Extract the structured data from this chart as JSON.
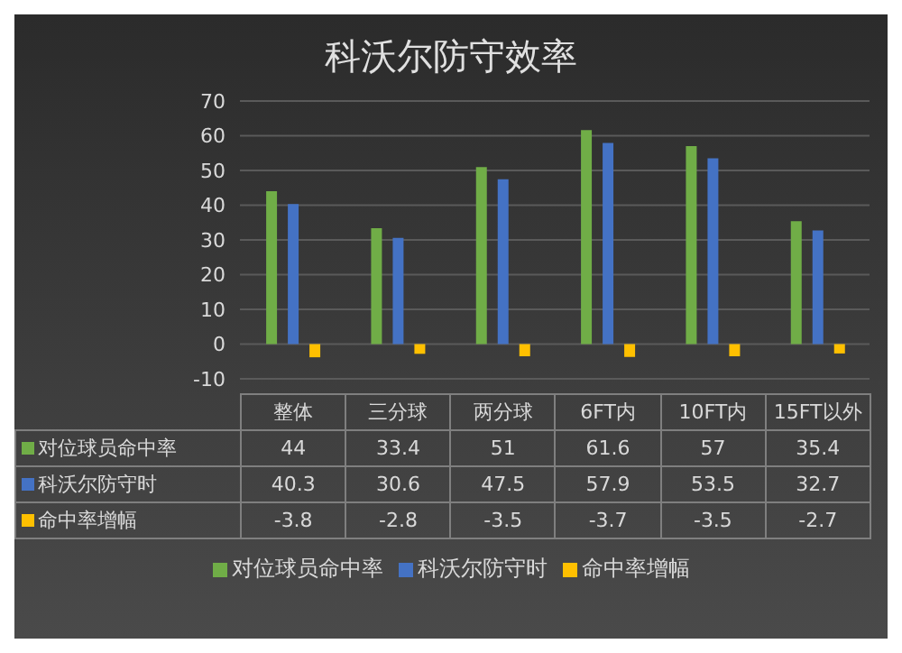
{
  "chart_data": {
    "type": "bar",
    "title": "科沃尔防守效率",
    "categories": [
      "整体",
      "三分球",
      "两分球",
      "6FT内",
      "10FT内",
      "15FT以外"
    ],
    "series": [
      {
        "name": "对位球员命中率",
        "color": "#70ad47",
        "values": [
          44,
          33.4,
          51,
          61.6,
          57,
          35.4
        ]
      },
      {
        "name": "科沃尔防守时",
        "color": "#4472c4",
        "values": [
          40.3,
          30.6,
          47.5,
          57.9,
          53.5,
          32.7
        ]
      },
      {
        "name": "命中率增幅",
        "color": "#ffc000",
        "values": [
          -3.8,
          -2.8,
          -3.5,
          -3.7,
          -3.5,
          -2.7
        ]
      }
    ],
    "ylim": [
      -10,
      70
    ],
    "yticks": [
      -10,
      0,
      10,
      20,
      30,
      40,
      50,
      60,
      70
    ],
    "grid": "y",
    "legend": "bottom",
    "data_labels": true
  }
}
